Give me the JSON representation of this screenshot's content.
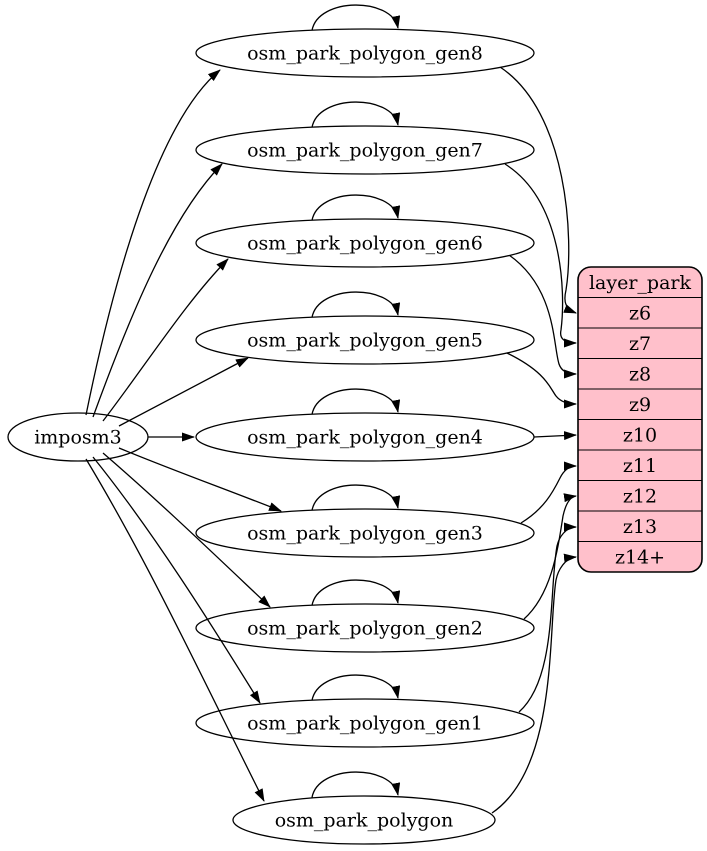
{
  "diagram": {
    "source": {
      "label": "imposm3"
    },
    "tables": [
      {
        "label": "osm_park_polygon_gen8",
        "target_row": "z6"
      },
      {
        "label": "osm_park_polygon_gen7",
        "target_row": "z7"
      },
      {
        "label": "osm_park_polygon_gen6",
        "target_row": "z8"
      },
      {
        "label": "osm_park_polygon_gen5",
        "target_row": "z9"
      },
      {
        "label": "osm_park_polygon_gen4",
        "target_row": "z10"
      },
      {
        "label": "osm_park_polygon_gen3",
        "target_row": "z11"
      },
      {
        "label": "osm_park_polygon_gen2",
        "target_row": "z12"
      },
      {
        "label": "osm_park_polygon_gen1",
        "target_row": "z13"
      },
      {
        "label": "osm_park_polygon",
        "target_row": "z14+"
      }
    ],
    "layer": {
      "title": "layer_park",
      "rows": [
        "z6",
        "z7",
        "z8",
        "z9",
        "z10",
        "z11",
        "z12",
        "z13",
        "z14+"
      ]
    },
    "colors": {
      "layer_fill": "#FFC0CB",
      "node_fill": "#FFFFFF",
      "stroke": "#000000",
      "background": "#FFFFFF"
    }
  }
}
